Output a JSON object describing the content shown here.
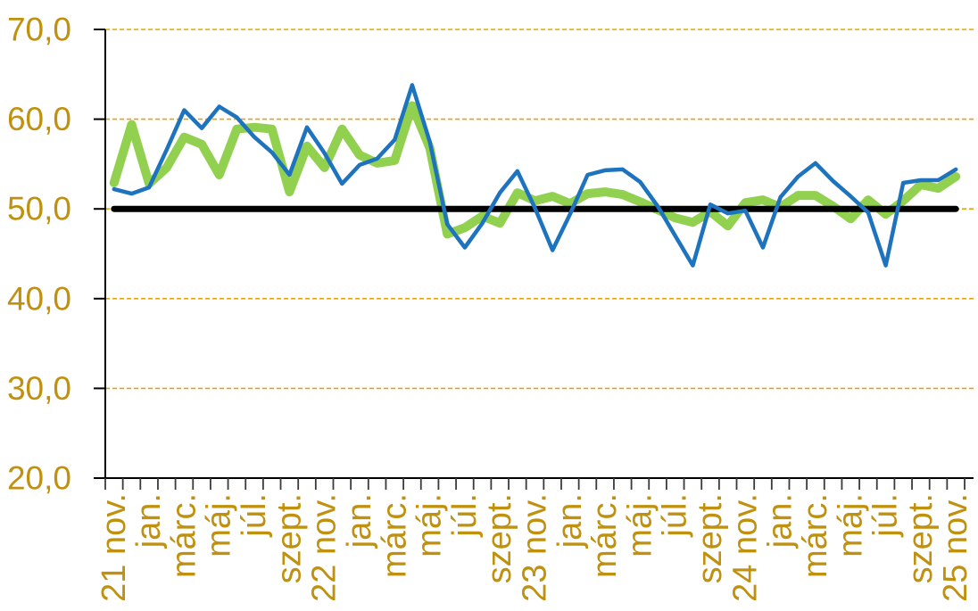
{
  "chart_data": {
    "type": "line",
    "title": "",
    "legend": "none",
    "grid": "horizontal dashed gold lines at 30,40,50,60,70",
    "ylim": [
      20,
      70
    ],
    "y_tick_values": [
      70,
      60,
      50,
      40,
      30,
      20
    ],
    "y_tick_labels": [
      "70,0",
      "60,0",
      "50,0",
      "40,0",
      "30,0",
      "20,0"
    ],
    "x_axis_labels": [
      "21 nov.",
      "jan.",
      "márc.",
      "máj.",
      "júl.",
      "szept.",
      "22 nov.",
      "jan.",
      "márc.",
      "máj.",
      "júl.",
      "szept.",
      "23 nov.",
      "jan.",
      "márc.",
      "máj.",
      "júl.",
      "szept.",
      "24 nov.",
      "jan.",
      "márc.",
      "máj.",
      "júl.",
      "szept.",
      "25 nov."
    ],
    "x_labels_every_n_months": 2,
    "categories": [
      "2021-11",
      "2021-12",
      "2022-01",
      "2022-02",
      "2022-03",
      "2022-04",
      "2022-05",
      "2022-06",
      "2022-07",
      "2022-08",
      "2022-09",
      "2022-10",
      "2022-11",
      "2022-12",
      "2023-01",
      "2023-02",
      "2023-03",
      "2023-04",
      "2023-05",
      "2023-06",
      "2023-07",
      "2023-08",
      "2023-09",
      "2023-10",
      "2023-11",
      "2023-12",
      "2024-01",
      "2024-02",
      "2024-03",
      "2024-04",
      "2024-05",
      "2024-06",
      "2024-07",
      "2024-08",
      "2024-09",
      "2024-10",
      "2024-11",
      "2024-12",
      "2025-01",
      "2025-02",
      "2025-03",
      "2025-04",
      "2025-05",
      "2025-06",
      "2025-07",
      "2025-08",
      "2025-09",
      "2025-10",
      "2025-11"
    ],
    "series": [
      {
        "name": "green-thick-line",
        "color": "#92D050",
        "stroke_width": 10,
        "values": [
          52.9,
          59.4,
          52.8,
          54.6,
          58.0,
          57.2,
          53.8,
          58.9,
          59.1,
          58.9,
          51.9,
          57.0,
          54.6,
          58.9,
          56.0,
          55.1,
          55.4,
          61.5,
          56.8,
          47.2,
          47.9,
          49.2,
          48.4,
          51.8,
          50.9,
          51.4,
          50.6,
          51.7,
          51.9,
          51.6,
          50.8,
          49.9,
          49.0,
          48.5,
          49.7,
          48.1,
          50.7,
          51.0,
          50.2,
          51.5,
          51.5,
          50.3,
          48.9,
          51.0,
          49.4,
          50.9,
          52.7,
          52.3,
          53.6
        ]
      },
      {
        "name": "blue-thin-line",
        "color": "#1E73BE",
        "stroke_width": 4.5,
        "values": [
          52.2,
          51.7,
          52.4,
          56.6,
          61.0,
          59.0,
          61.4,
          60.2,
          58.0,
          56.3,
          53.8,
          59.1,
          56.2,
          52.8,
          54.9,
          55.6,
          57.7,
          63.8,
          57.5,
          48.3,
          45.7,
          48.4,
          51.8,
          54.2,
          50.1,
          45.4,
          49.4,
          53.8,
          54.3,
          54.4,
          53.0,
          50.3,
          47.0,
          43.7,
          50.5,
          49.5,
          49.8,
          45.7,
          51.3,
          53.6,
          55.1,
          53.1,
          51.4,
          49.6,
          43.7,
          52.9,
          53.2,
          53.2,
          54.4
        ]
      },
      {
        "name": "baseline-50",
        "color": "#000000",
        "stroke_width": 7,
        "constant_value": 50.0
      }
    ]
  },
  "styles": {
    "axis_label_color": "#C0910F",
    "gridline_color": "#DFA324",
    "axis_line_color": "#000000",
    "tick_color": "#3A3A3A",
    "background": "#ffffff"
  }
}
